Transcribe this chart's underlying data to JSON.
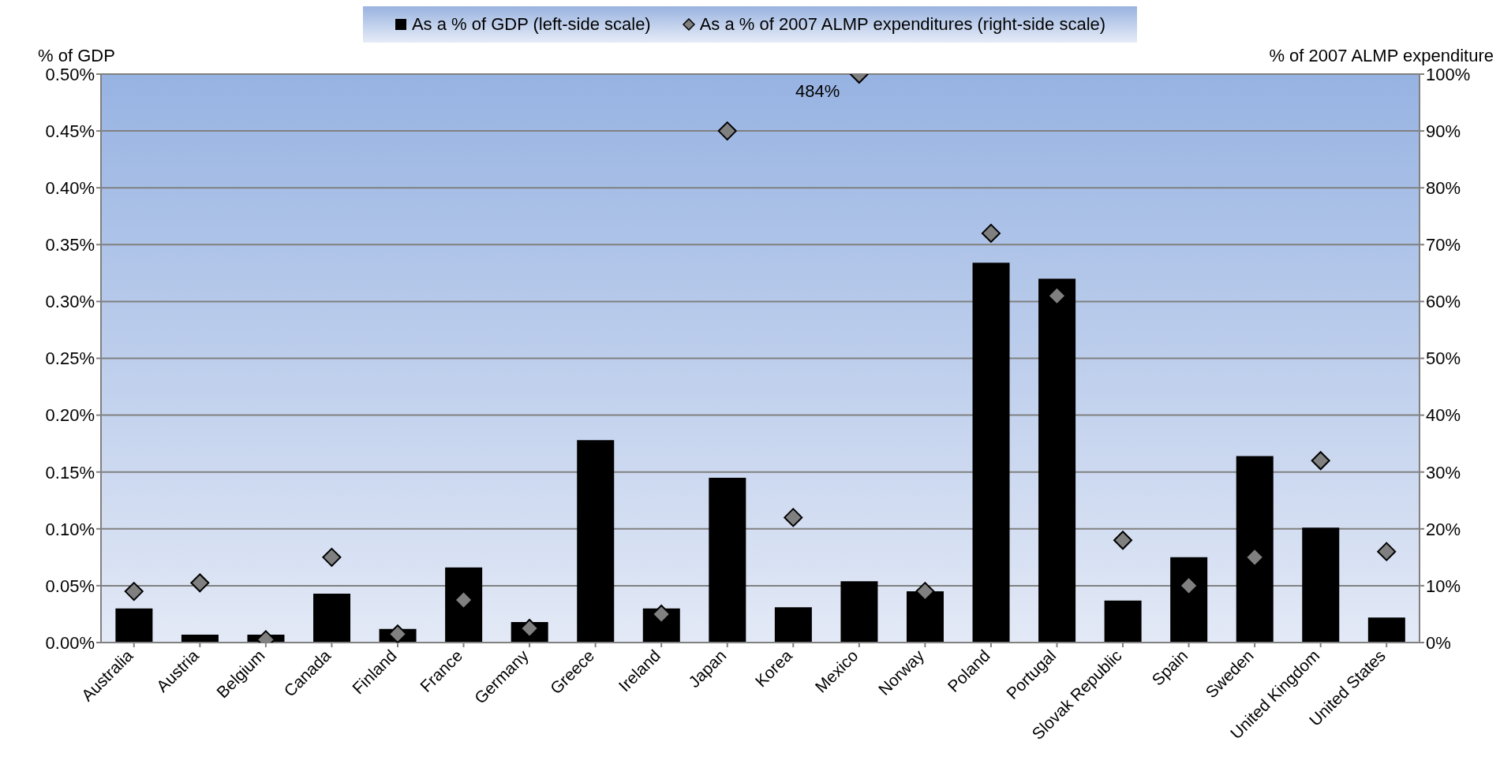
{
  "chart_data": {
    "type": "bar",
    "ylabel": "% of GDP",
    "y2label": "% of 2007 ALMP expenditure",
    "categories": [
      "Australia",
      "Austria",
      "Belgium",
      "Canada",
      "Finland",
      "France",
      "Germany",
      "Greece",
      "Ireland",
      "Japan",
      "Korea",
      "Mexico",
      "Norway",
      "Poland",
      "Portugal",
      "Slovak Republic",
      "Spain",
      "Sweden",
      "United Kingdom",
      "United States"
    ],
    "series": [
      {
        "name": "As a % of GDP (left-side scale)",
        "color": "#000000",
        "values": [
          0.03,
          0.007,
          0.007,
          0.043,
          0.012,
          0.066,
          0.018,
          0.178,
          0.03,
          0.145,
          0.031,
          0.054,
          0.045,
          0.334,
          0.32,
          0.037,
          0.075,
          0.164,
          0.101,
          0.022
        ]
      },
      {
        "name": "As a % of 2007 ALMP expenditures (right-side scale)",
        "type": "scatter",
        "axis": "y2",
        "marker": "diamond",
        "color": "#808080",
        "values": [
          9,
          10.5,
          0.5,
          15,
          1.5,
          7.5,
          2.5,
          null,
          5,
          90,
          22,
          100,
          9,
          72,
          61,
          18,
          10,
          15,
          32,
          16
        ]
      }
    ],
    "annotations": [
      "484%"
    ],
    "ylim": [
      0,
      0.5
    ],
    "yticks": [
      {
        "value": 0,
        "label": "0.00%"
      },
      {
        "value": 0.05,
        "label": "0.05%"
      },
      {
        "value": 0.1,
        "label": "0.10%"
      },
      {
        "value": 0.15,
        "label": "0.15%"
      },
      {
        "value": 0.2,
        "label": "0.20%"
      },
      {
        "value": 0.25,
        "label": "0.25%"
      },
      {
        "value": 0.3,
        "label": "0.30%"
      },
      {
        "value": 0.35,
        "label": "0.35%"
      },
      {
        "value": 0.4,
        "label": "0.40%"
      },
      {
        "value": 0.45,
        "label": "0.45%"
      },
      {
        "value": 0.5,
        "label": "0.50%"
      }
    ],
    "y2lim": [
      0,
      100
    ],
    "y2ticks": [
      {
        "value": 0,
        "label": "0%"
      },
      {
        "value": 10,
        "label": "10%"
      },
      {
        "value": 20,
        "label": "20%"
      },
      {
        "value": 30,
        "label": "30%"
      },
      {
        "value": 40,
        "label": "40%"
      },
      {
        "value": 50,
        "label": "50%"
      },
      {
        "value": 60,
        "label": "60%"
      },
      {
        "value": 70,
        "label": "70%"
      },
      {
        "value": 80,
        "label": "80%"
      },
      {
        "value": 90,
        "label": "90%"
      },
      {
        "value": 100,
        "label": "100%"
      }
    ],
    "grid": "y",
    "legend": "top"
  }
}
